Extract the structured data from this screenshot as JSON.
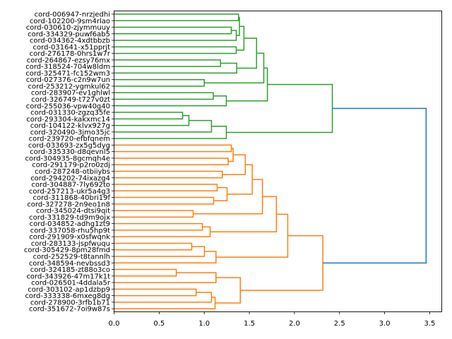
{
  "chart_data": {
    "type": "dendrogram",
    "orientation": "right",
    "title": "",
    "xlabel": "",
    "ylabel": "",
    "xlim": [
      0,
      3.62
    ],
    "xticks": [
      0.0,
      0.5,
      1.0,
      1.5,
      2.0,
      2.5,
      3.0,
      3.5
    ],
    "xtick_labels": [
      "0.0",
      "0.5",
      "1.0",
      "1.5",
      "2.0",
      "2.5",
      "3.0",
      "3.5"
    ],
    "colors": {
      "g": "#2ca02c",
      "o": "#ff7f0e",
      "b": "#1f77b4"
    },
    "leaves": [
      "cord-006947-nrzjedhi",
      "cord-102200-9sm4rlao",
      "cord-030610-zjymmuuy",
      "cord-334329-puwf6ab5",
      "cord-034362-4xdtbbzb",
      "cord-031641-x51pprjt",
      "cord-276178-0hrs1w7r",
      "cord-264867-ezsy76mx",
      "cord-318524-704w8ldm",
      "cord-325471-fc152wm3",
      "cord-027376-c2n9w7un",
      "cord-253212-ygmkul62",
      "cord-283907-ev1ghlwl",
      "cord-326749-t727v0zt",
      "cord-255036-vpw40g40",
      "cord-031330-zgzq35fe",
      "cord-293304-kakxmc14",
      "cord-104122-klvx927g",
      "cord-320490-3jmo35jc",
      "cord-239720-efbfqnem",
      "cord-033693-zx5g5dyg",
      "cord-335330-d8qevnl5",
      "cord-304935-8gcmqh4e",
      "cord-291179-p2ro0zdj",
      "cord-287248-otbiiybs",
      "cord-294202-74ixazg4",
      "cord-304887-7ly692to",
      "cord-257213-ukr5a4g3",
      "cord-311868-40bri19f",
      "cord-327278-2n9eo1n8",
      "cord-345024-dtsi9qit",
      "cord-331829-td9m9ojx",
      "cord-034852-adhg1zt9",
      "cord-337058-rhu5hp9t",
      "cord-291909-x0sfwqnk",
      "cord-283133-jspfwuqu",
      "cord-305429-8pm28fmd",
      "cord-252529-t8tannlh",
      "cord-348594-nevbssd3",
      "cord-324185-zt88o3co",
      "cord-343926-47m17k1t",
      "cord-026501-4ddala5r",
      "cord-303102-ap1dzbp9",
      "cord-333338-6mxeg8dg",
      "cord-278900-3rfb1b71",
      "cord-351672-7oi9w87s"
    ],
    "merges": [
      [
        0,
        1,
        1.38,
        "g"
      ],
      [
        2,
        3,
        1.3,
        "g"
      ],
      [
        47,
        4,
        1.355,
        "g"
      ],
      [
        46,
        48,
        1.39,
        "g"
      ],
      [
        5,
        6,
        1.355,
        "g"
      ],
      [
        49,
        50,
        1.44,
        "g"
      ],
      [
        7,
        8,
        1.18,
        "g"
      ],
      [
        52,
        9,
        1.36,
        "g"
      ],
      [
        51,
        53,
        1.58,
        "g"
      ],
      [
        10,
        11,
        1.0,
        "g"
      ],
      [
        54,
        55,
        1.66,
        "g"
      ],
      [
        12,
        13,
        1.1,
        "g"
      ],
      [
        57,
        14,
        1.245,
        "g"
      ],
      [
        56,
        58,
        1.7,
        "g"
      ],
      [
        15,
        16,
        0.76,
        "g"
      ],
      [
        60,
        17,
        0.83,
        "g"
      ],
      [
        61,
        18,
        1.08,
        "g"
      ],
      [
        62,
        19,
        1.245,
        "g"
      ],
      [
        59,
        63,
        2.42,
        "g"
      ],
      [
        20,
        21,
        1.3,
        "o"
      ],
      [
        22,
        23,
        1.265,
        "o"
      ],
      [
        65,
        66,
        1.32,
        "o"
      ],
      [
        24,
        25,
        1.2,
        "o"
      ],
      [
        67,
        68,
        1.455,
        "o"
      ],
      [
        26,
        27,
        1.143,
        "o"
      ],
      [
        28,
        29,
        1.104,
        "o"
      ],
      [
        70,
        71,
        1.253,
        "o"
      ],
      [
        69,
        72,
        1.532,
        "o"
      ],
      [
        30,
        31,
        0.877,
        "o"
      ],
      [
        73,
        74,
        1.645,
        "o"
      ],
      [
        32,
        33,
        0.98,
        "o"
      ],
      [
        76,
        34,
        1.065,
        "o"
      ],
      [
        75,
        77,
        1.8,
        "o"
      ],
      [
        35,
        36,
        0.861,
        "o"
      ],
      [
        79,
        37,
        1.002,
        "o"
      ],
      [
        80,
        38,
        1.13,
        "o"
      ],
      [
        78,
        81,
        1.926,
        "o"
      ],
      [
        39,
        40,
        0.69,
        "o"
      ],
      [
        83,
        41,
        1.13,
        "o"
      ],
      [
        42,
        43,
        0.91,
        "o"
      ],
      [
        85,
        44,
        1.08,
        "o"
      ],
      [
        86,
        45,
        1.12,
        "o"
      ],
      [
        84,
        87,
        1.4,
        "o"
      ],
      [
        82,
        88,
        2.315,
        "o"
      ],
      [
        64,
        89,
        3.46,
        "b"
      ]
    ]
  }
}
